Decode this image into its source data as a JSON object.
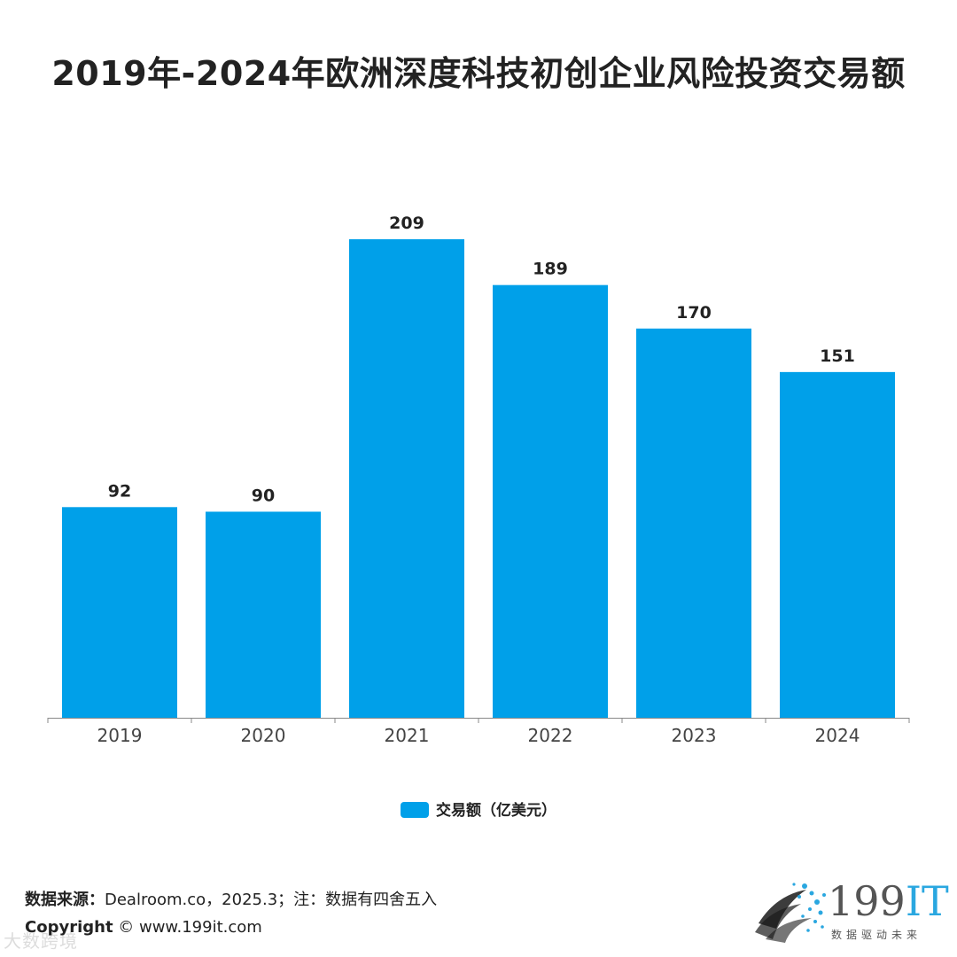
{
  "chart_data": {
    "type": "bar",
    "title": "2019年-2024年欧洲深度科技初创企业风险投资交易额",
    "categories": [
      "2019",
      "2020",
      "2021",
      "2022",
      "2023",
      "2024"
    ],
    "series": [
      {
        "name": "交易额（亿美元）",
        "values": [
          92,
          90,
          209,
          189,
          170,
          151
        ]
      }
    ],
    "data_labels": [
      "92",
      "90",
      "209",
      "189",
      "170",
      "151"
    ],
    "xlabel": "",
    "ylabel": "",
    "ylim": [
      0,
      209
    ],
    "grid": false,
    "legend_position": "bottom",
    "bar_color": "#00a0e9"
  },
  "footer": {
    "source_label": "数据来源：",
    "source_text": "Dealroom.co，2025.3；注：数据有四舍五入",
    "copyright_label": "Copyright",
    "copyright_text": " © www.199it.com",
    "watermark": "大数跨境"
  },
  "logo": {
    "digits": "199",
    "letters": "IT",
    "tagline": "数据驱动未来",
    "accent_color": "#2aa7e0"
  }
}
